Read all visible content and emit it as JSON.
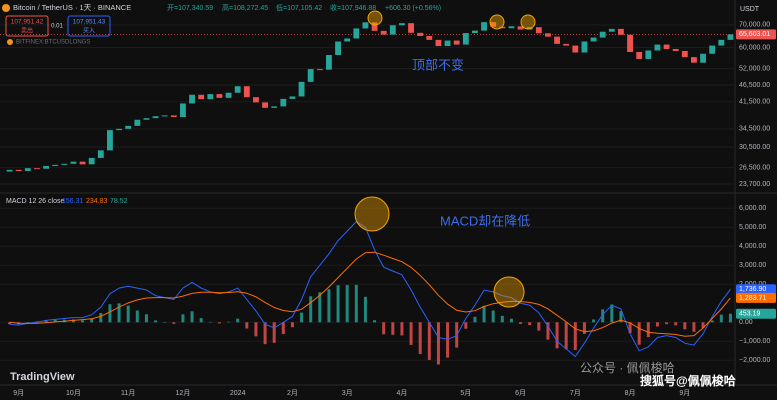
{
  "ui": {
    "symbol": "Bitcoin / TetherUS · 1天 · BINANCE",
    "ohlc": [
      "开=107,340.59",
      "高=108,272.45",
      "低=107,105.42",
      "收=107,946.88",
      "+606.30 (+0.56%)"
    ],
    "sell_price": "107,951.42",
    "sell": "卖出",
    "qty": "0.01",
    "buy_price": "107,951.43",
    "buy": "买入",
    "overlay": "BITFINEX:BTCUSDLONGS",
    "currency": "USDT",
    "logo": "TradingView",
    "note_price": "顶部不变",
    "note_macd": "MACD却在降低",
    "watermark1": "公众号 · 佩佩梭哈",
    "watermark2": "搜狐号@佩佩梭哈"
  },
  "chart_data": [
    {
      "type": "candlestick",
      "log_scale": true,
      "grid": true,
      "up_color": "#26a69a",
      "down_color": "#ef5350",
      "categories": [
        null,
        "9月",
        null,
        null,
        null,
        null,
        null,
        "10月",
        null,
        null,
        null,
        null,
        null,
        "11月",
        null,
        null,
        null,
        null,
        null,
        "12月",
        null,
        null,
        null,
        null,
        null,
        "2024",
        null,
        null,
        null,
        null,
        null,
        "2月",
        null,
        null,
        null,
        null,
        null,
        "3月",
        null,
        null,
        null,
        null,
        null,
        "4月",
        null,
        null,
        null,
        null,
        null,
        null,
        "5月",
        null,
        null,
        null,
        null,
        null,
        "6月",
        null,
        null,
        null,
        null,
        null,
        "7月",
        null,
        null,
        null,
        null,
        null,
        "8月",
        null,
        null,
        null,
        null,
        null,
        "9月",
        null,
        null,
        null,
        null,
        null
      ],
      "open": [
        25800,
        26100,
        25900,
        26400,
        26300,
        26800,
        27000,
        27200,
        27600,
        27100,
        28300,
        29800,
        34200,
        34500,
        35200,
        36700,
        37100,
        37600,
        37800,
        37400,
        41000,
        43500,
        42200,
        43700,
        42600,
        44100,
        46100,
        42800,
        41300,
        39800,
        40200,
        42300,
        43000,
        47500,
        51800,
        51600,
        57000,
        62500,
        63800,
        68300,
        71200,
        67200,
        65500,
        69800,
        70800,
        66300,
        64900,
        63200,
        60600,
        62900,
        61200,
        66200,
        67300,
        71300,
        69100,
        68400,
        69300,
        67800,
        68900,
        66100,
        64600,
        61500,
        60800,
        58000,
        62500,
        64200,
        66800,
        68100,
        65400,
        58200,
        55500,
        58800,
        61200,
        59400,
        58600,
        56200,
        54100,
        57500,
        60800,
        63200
      ],
      "close": [
        26100,
        25900,
        26400,
        26300,
        26800,
        27000,
        27200,
        27600,
        27100,
        28300,
        29800,
        34200,
        34500,
        35200,
        36700,
        37100,
        37600,
        37800,
        37400,
        41000,
        43500,
        42200,
        43700,
        42600,
        44100,
        46100,
        42800,
        41300,
        39800,
        40200,
        42300,
        43000,
        47500,
        51800,
        51600,
        57000,
        62500,
        63800,
        68300,
        71200,
        67200,
        65500,
        69800,
        70800,
        66300,
        64900,
        63200,
        60600,
        62900,
        61200,
        66200,
        67300,
        71300,
        69100,
        68400,
        69300,
        67800,
        68900,
        66100,
        64600,
        61500,
        60800,
        58000,
        62500,
        64200,
        66800,
        68100,
        65400,
        58200,
        55500,
        58800,
        61200,
        59400,
        58600,
        56200,
        54100,
        57500,
        60800,
        63200,
        65603.01
      ],
      "last_label": "65,603.01",
      "ylim": [
        22450,
        78500
      ],
      "yticks": [
        {
          "value": 70000,
          "label": "70,000.00"
        },
        {
          "value": 60000,
          "label": "60,000.00"
        },
        {
          "value": 52000,
          "label": "52,000.00"
        },
        {
          "value": 46500,
          "label": "46,500.00"
        },
        {
          "value": 41500,
          "label": "41,500.00"
        },
        {
          "value": 34500,
          "label": "34,500.00"
        },
        {
          "value": 30500,
          "label": "30,500.00"
        },
        {
          "value": 26500,
          "label": "26,500.00"
        },
        {
          "value": 23700,
          "label": "23,700.00"
        }
      ]
    },
    {
      "type": "macd",
      "title": "MACD 12 26 close",
      "readout": [
        "156.31",
        "234.83",
        "78.52"
      ],
      "grid": true,
      "macd_color": "#2962ff",
      "signal_color": "#ff6d00",
      "hist_up_color": "#26a69a",
      "hist_down_color": "#ef5350",
      "macd": [
        -100,
        -150,
        -50,
        0,
        100,
        150,
        200,
        250,
        250,
        400,
        800,
        1500,
        1800,
        1900,
        1800,
        1700,
        1400,
        1300,
        1200,
        1800,
        2100,
        1800,
        1600,
        1500,
        1600,
        1800,
        1200,
        600,
        -100,
        -300,
        0,
        300,
        1200,
        2400,
        3000,
        3600,
        4300,
        4800,
        5300,
        5000,
        3800,
        2900,
        2700,
        2500,
        1700,
        800,
        0,
        -800,
        -900,
        -700,
        200,
        900,
        1700,
        1600,
        1400,
        1300,
        1000,
        900,
        500,
        -200,
        -1000,
        -1400,
        -1800,
        -1100,
        -300,
        400,
        900,
        700,
        -600,
        -1500,
        -1300,
        -800,
        -700,
        -800,
        -1100,
        -1200,
        -600,
        300,
        1100,
        1736.9
      ],
      "signal": [
        0,
        -50,
        -60,
        -50,
        -20,
        20,
        60,
        100,
        140,
        190,
        310,
        550,
        800,
        1020,
        1180,
        1280,
        1300,
        1300,
        1280,
        1380,
        1520,
        1580,
        1580,
        1560,
        1570,
        1610,
        1530,
        1340,
        1050,
        780,
        620,
        560,
        690,
        1030,
        1420,
        1860,
        2350,
        2840,
        3330,
        3660,
        3690,
        3530,
        3360,
        3190,
        2890,
        2470,
        1980,
        1420,
        960,
        630,
        540,
        610,
        830,
        980,
        1060,
        1110,
        1090,
        1050,
        940,
        710,
        370,
        20,
        -340,
        -490,
        -450,
        -280,
        -40,
        110,
        -30,
        -320,
        -520,
        -580,
        -600,
        -640,
        -730,
        -700,
        -300,
        200,
        700,
        1283.71
      ],
      "histogram": [
        -100,
        -100,
        10,
        50,
        120,
        130,
        140,
        150,
        110,
        210,
        490,
        950,
        1000,
        880,
        620,
        420,
        100,
        0,
        -80,
        420,
        580,
        220,
        20,
        -60,
        30,
        190,
        -330,
        -740,
        -1150,
        -1080,
        -620,
        -260,
        510,
        1370,
        1580,
        1740,
        1950,
        1960,
        1970,
        1340,
        110,
        -630,
        -660,
        -690,
        -1190,
        -1670,
        -1980,
        -2220,
        -1860,
        -1330,
        -340,
        290,
        870,
        620,
        340,
        190,
        -90,
        -150,
        -440,
        -910,
        -1370,
        -1420,
        -1460,
        -610,
        150,
        680,
        940,
        590,
        -570,
        -1180,
        -780,
        -220,
        -100,
        -160,
        -370,
        -500,
        -300,
        100,
        400,
        453.19
      ],
      "last_values": [
        {
          "value": 1736.9,
          "label": "1,736.90",
          "color": "#2962ff"
        },
        {
          "value": 1283.71,
          "label": "1,283.71",
          "color": "#ff6d00"
        },
        {
          "value": 453.19,
          "label": "453.19",
          "color": "#26a69a"
        }
      ],
      "ylim": [
        -3300,
        6700
      ],
      "yticks": [
        {
          "value": 6000,
          "label": "6,000.00"
        },
        {
          "value": 5000,
          "label": "5,000.00"
        },
        {
          "value": 4000,
          "label": "4,000.00"
        },
        {
          "value": 3000,
          "label": "3,000.00"
        },
        {
          "value": 2000,
          "label": "2,000.00"
        },
        {
          "value": 0,
          "label": "0.00"
        },
        {
          "value": -1000,
          "label": "−1,000.00"
        },
        {
          "value": -2000,
          "label": "−2,000.00"
        }
      ]
    }
  ]
}
